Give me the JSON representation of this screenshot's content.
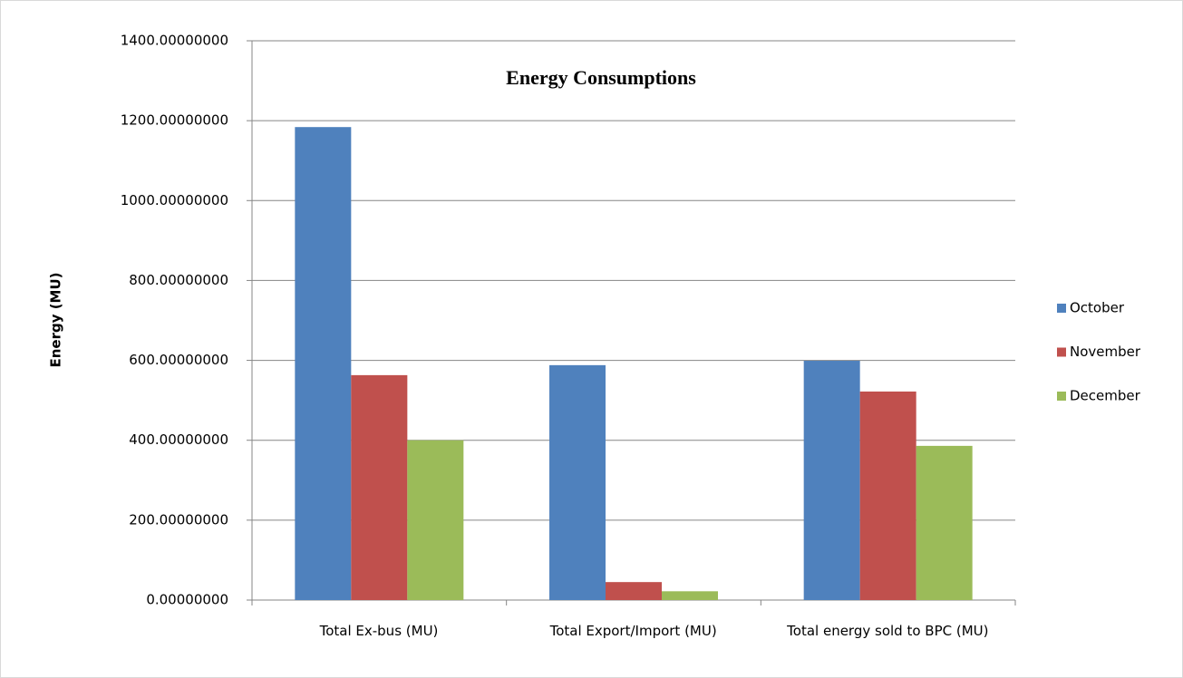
{
  "chart_data": {
    "type": "bar",
    "title": "Energy Consumptions",
    "y_label": "Energy (MU)",
    "categories": [
      "Total Ex-bus (MU)",
      "Total Export/Import (MU)",
      "Total energy sold to BPC (MU)"
    ],
    "series": [
      {
        "name": "October",
        "color": "#4f81bd",
        "values": [
          1184,
          588,
          599
        ]
      },
      {
        "name": "November",
        "color": "#c0504d",
        "values": [
          563,
          45,
          522
        ]
      },
      {
        "name": "December",
        "color": "#9bbb59",
        "values": [
          400,
          22,
          386
        ]
      }
    ],
    "ylim": [
      0,
      1400
    ],
    "yticks": [
      {
        "value": 0,
        "label": "0.00000000"
      },
      {
        "value": 200,
        "label": "200.00000000"
      },
      {
        "value": 400,
        "label": "400.00000000"
      },
      {
        "value": 600,
        "label": "600.00000000"
      },
      {
        "value": 800,
        "label": "800.00000000"
      },
      {
        "value": 1000,
        "label": "1000.00000000"
      },
      {
        "value": 1200,
        "label": "1200.00000000"
      },
      {
        "value": 1400,
        "label": "1400.00000000"
      }
    ],
    "grid": true,
    "legend": "right"
  }
}
